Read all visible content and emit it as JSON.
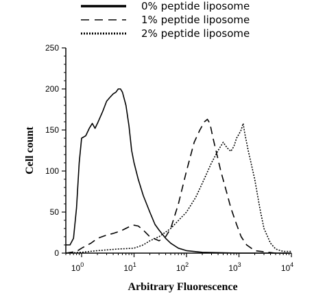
{
  "chart_data": {
    "type": "line",
    "xlabel": "Arbitrary Fluorescence",
    "ylabel": "Cell count",
    "x_scale": "log",
    "xlim": [
      0.5,
      10000
    ],
    "ylim": [
      0,
      250
    ],
    "x_ticks": [
      {
        "value": 1,
        "base": "10",
        "exp": "0"
      },
      {
        "value": 10,
        "base": "10",
        "exp": "1"
      },
      {
        "value": 100,
        "base": "10",
        "exp": "2"
      },
      {
        "value": 1000,
        "base": "10",
        "exp": "3"
      },
      {
        "value": 10000,
        "base": "10",
        "exp": "4"
      }
    ],
    "y_ticks": [
      0,
      50,
      100,
      150,
      200,
      250
    ],
    "legend_position": "top",
    "series": [
      {
        "name": "0% peptide liposome",
        "dash": "solid",
        "points": [
          [
            0.5,
            10
          ],
          [
            0.6,
            10
          ],
          [
            0.7,
            18
          ],
          [
            0.8,
            55
          ],
          [
            0.9,
            110
          ],
          [
            1.0,
            140
          ],
          [
            1.2,
            143
          ],
          [
            1.4,
            152
          ],
          [
            1.6,
            158
          ],
          [
            1.8,
            152
          ],
          [
            2.0,
            158
          ],
          [
            2.5,
            172
          ],
          [
            3.0,
            185
          ],
          [
            3.5,
            190
          ],
          [
            4.0,
            194
          ],
          [
            4.5,
            196
          ],
          [
            5.0,
            200
          ],
          [
            5.5,
            200
          ],
          [
            6.0,
            196
          ],
          [
            7.0,
            180
          ],
          [
            8.0,
            155
          ],
          [
            9.0,
            125
          ],
          [
            10,
            110
          ],
          [
            12,
            90
          ],
          [
            15,
            70
          ],
          [
            20,
            50
          ],
          [
            25,
            35
          ],
          [
            30,
            28
          ],
          [
            40,
            18
          ],
          [
            50,
            12
          ],
          [
            70,
            6
          ],
          [
            100,
            3
          ],
          [
            200,
            1
          ],
          [
            1000,
            0
          ],
          [
            10000,
            0
          ]
        ]
      },
      {
        "name": "1% peptide liposome",
        "dash": "dashed",
        "points": [
          [
            0.5,
            0
          ],
          [
            0.8,
            2
          ],
          [
            1.0,
            6
          ],
          [
            1.5,
            12
          ],
          [
            2.0,
            18
          ],
          [
            3.0,
            22
          ],
          [
            4.0,
            24
          ],
          [
            5.0,
            26
          ],
          [
            6.0,
            28
          ],
          [
            8.0,
            32
          ],
          [
            10,
            34
          ],
          [
            12,
            33
          ],
          [
            15,
            28
          ],
          [
            20,
            20
          ],
          [
            30,
            15
          ],
          [
            40,
            20
          ],
          [
            50,
            30
          ],
          [
            70,
            60
          ],
          [
            100,
            100
          ],
          [
            140,
            135
          ],
          [
            180,
            150
          ],
          [
            220,
            160
          ],
          [
            250,
            163
          ],
          [
            280,
            158
          ],
          [
            320,
            140
          ],
          [
            380,
            120
          ],
          [
            450,
            100
          ],
          [
            550,
            80
          ],
          [
            700,
            55
          ],
          [
            900,
            35
          ],
          [
            1100,
            20
          ],
          [
            1400,
            10
          ],
          [
            2000,
            3
          ],
          [
            5000,
            0
          ],
          [
            10000,
            0
          ]
        ]
      },
      {
        "name": "2% peptide liposome",
        "dash": "dotted",
        "points": [
          [
            0.5,
            0
          ],
          [
            1.0,
            1
          ],
          [
            2.0,
            3
          ],
          [
            5.0,
            5
          ],
          [
            10,
            6
          ],
          [
            15,
            10
          ],
          [
            20,
            15
          ],
          [
            30,
            20
          ],
          [
            50,
            30
          ],
          [
            100,
            50
          ],
          [
            150,
            68
          ],
          [
            200,
            85
          ],
          [
            300,
            110
          ],
          [
            400,
            125
          ],
          [
            500,
            135
          ],
          [
            600,
            128
          ],
          [
            700,
            124
          ],
          [
            800,
            130
          ],
          [
            900,
            140
          ],
          [
            1000,
            145
          ],
          [
            1100,
            150
          ],
          [
            1200,
            158
          ],
          [
            1300,
            145
          ],
          [
            1500,
            125
          ],
          [
            2000,
            90
          ],
          [
            2500,
            55
          ],
          [
            3000,
            30
          ],
          [
            4000,
            12
          ],
          [
            5000,
            5
          ],
          [
            7000,
            2
          ],
          [
            10000,
            2
          ]
        ]
      }
    ]
  }
}
